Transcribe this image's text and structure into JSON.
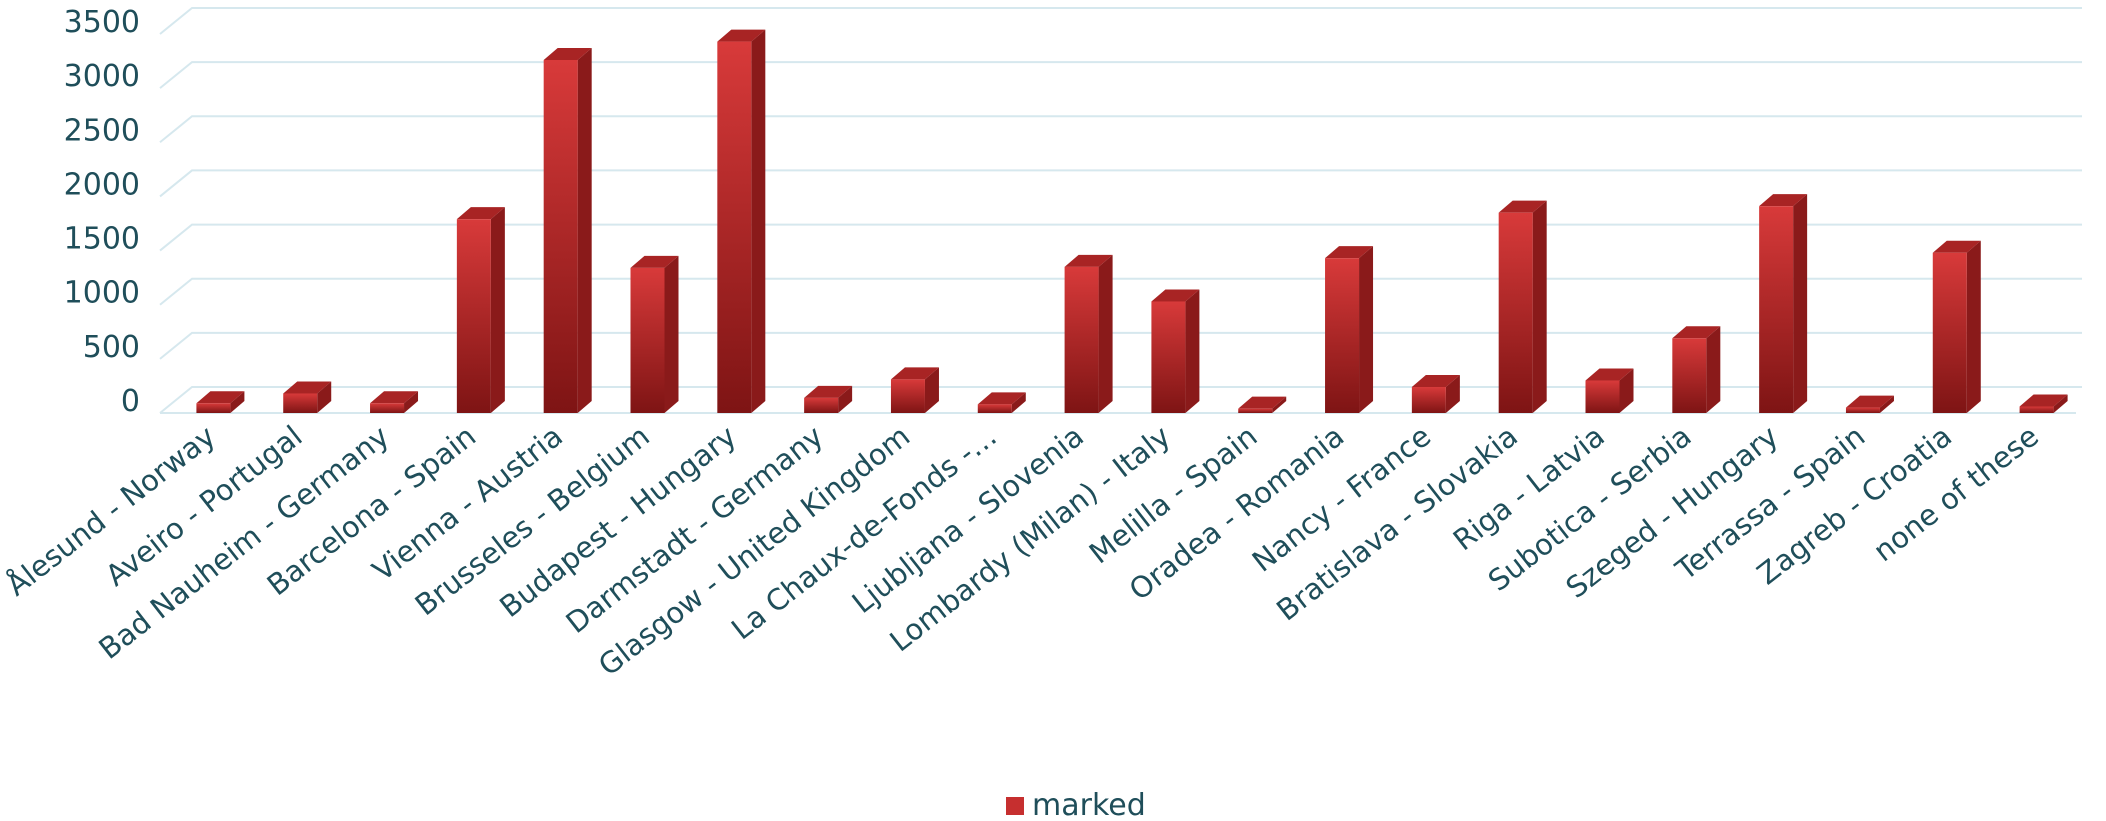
{
  "chart_data": {
    "type": "bar",
    "categories": [
      "Ålesund - Norway",
      "Aveiro - Portugal",
      "Bad Nauheim - Germany",
      "Barcelona - Spain",
      "Vienna - Austria",
      "Brusseles - Belgium",
      "Budapest - Hungary",
      "Darmstadt - Germany",
      "Glasgow - United Kingdom",
      "La Chaux-de-Fonds -…",
      "Ljubljana - Slovenia",
      "Lombardy (Milan) - Italy",
      "Melilla - Spain",
      "Oradea - Romania",
      "Nancy - France",
      "Bratislava - Slovakia",
      "Riga - Latvia",
      "Subotica - Serbia",
      "Szeged - Hungary",
      "Terrassa - Spain",
      "Zagreb - Croatia",
      "none of these"
    ],
    "series": [
      {
        "name": "marked",
        "values": [
          90,
          180,
          90,
          1790,
          3260,
          1340,
          3430,
          140,
          310,
          80,
          1350,
          1030,
          40,
          1430,
          240,
          1850,
          300,
          690,
          1910,
          50,
          1480,
          60
        ]
      }
    ],
    "ylim": [
      0,
      3500
    ],
    "yticks": [
      "0",
      "500",
      "1000",
      "1500",
      "2000",
      "2500",
      "3000",
      "3500"
    ],
    "grid": true,
    "legend_position": "bottom",
    "colors": {
      "bar_front": "#c62f2f",
      "bar_side": "#8a1a1a",
      "bar_top": "#a82424",
      "grid": "#d6e8ee",
      "text": "#1f4e5a"
    }
  }
}
